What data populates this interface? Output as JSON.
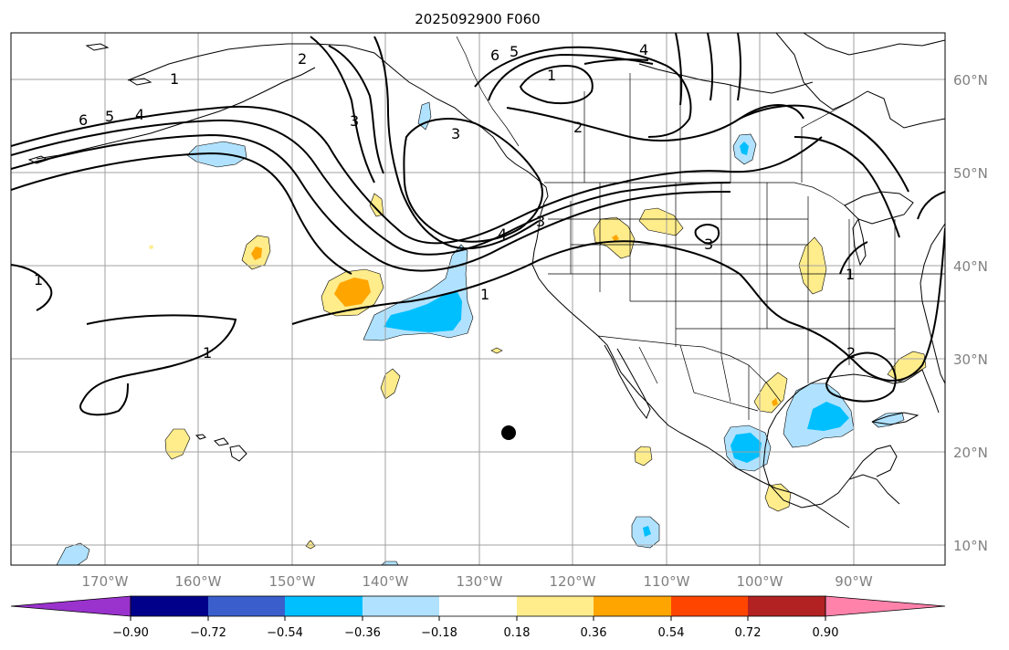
{
  "title": "2025092900 F060",
  "lon_labels": [
    "170°W",
    "160°W",
    "150°W",
    "140°W",
    "130°W",
    "120°W",
    "110°W",
    "100°W",
    "90°W"
  ],
  "lat_labels": [
    "60°N",
    "50°N",
    "40°N",
    "30°N",
    "20°N",
    "10°N"
  ],
  "colorbar": {
    "colors": [
      "#9a32cd",
      "#00008b",
      "#3a5fcd",
      "#00bfff",
      "#b0e2ff",
      "#ffffff",
      "#ffec8b",
      "#ffa500",
      "#ff4500",
      "#b22222",
      "#ff82ab"
    ],
    "tick_labels": [
      "−0.90",
      "−0.72",
      "−0.54",
      "−0.36",
      "−0.18",
      "0.18",
      "0.36",
      "0.54",
      "0.72",
      "0.90"
    ]
  },
  "colors": {
    "pale_blue": "#b0e2ff",
    "deep_sky_blue": "#00bfff",
    "light_yellow": "#ffec8b",
    "orange": "#ffa500",
    "contour": "#000000",
    "grid": "#a0a0a0",
    "axis_text": "#808080"
  },
  "contour_labels": [
    "6",
    "5",
    "4",
    "1",
    "2",
    "3",
    "3",
    "6",
    "5",
    "1",
    "4",
    "2",
    "4",
    "3",
    "1",
    "1",
    "1",
    "3",
    "1",
    "2"
  ],
  "marker": {
    "type": "dot",
    "lon": -127,
    "lat": 22
  }
}
